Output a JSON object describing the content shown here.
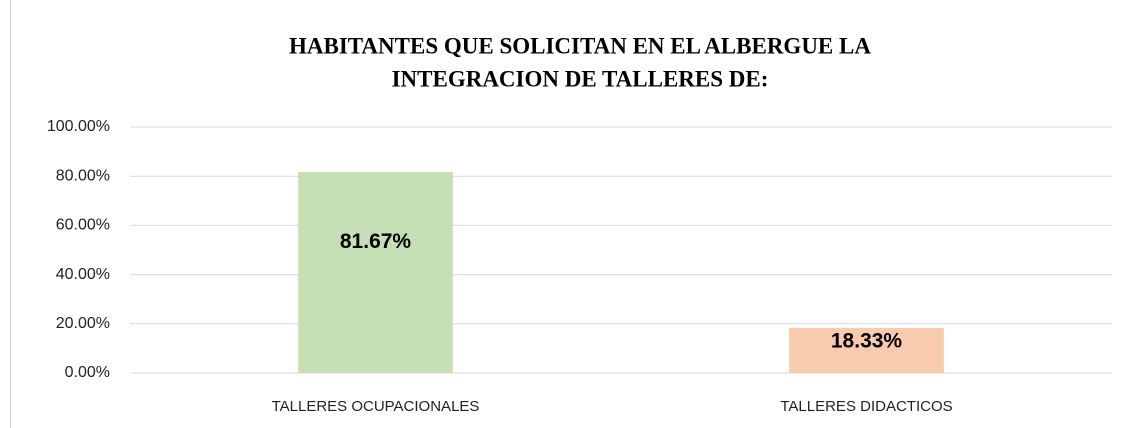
{
  "chart_data": {
    "type": "bar",
    "title": [
      "HABITANTES QUE SOLICITAN EN EL ALBERGUE LA",
      "INTEGRACION DE TALLERES DE:"
    ],
    "categories": [
      "TALLERES OCUPACIONALES",
      "TALLERES DIDACTICOS"
    ],
    "values": [
      81.67,
      18.33
    ],
    "value_labels": [
      "81.67%",
      "18.33%"
    ],
    "colors": [
      "#c5e0b4",
      "#f8cbad"
    ],
    "ylim": [
      0,
      100
    ],
    "yticks": [
      {
        "value": 0,
        "label": "0.00%"
      },
      {
        "value": 20,
        "label": "20.00%"
      },
      {
        "value": 40,
        "label": "40.00%"
      },
      {
        "value": 60,
        "label": "60.00%"
      },
      {
        "value": 80,
        "label": "80.00%"
      },
      {
        "value": 100,
        "label": "100.00%"
      }
    ],
    "grid": true
  }
}
